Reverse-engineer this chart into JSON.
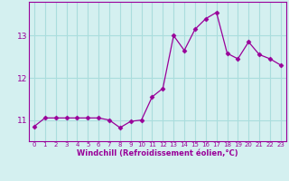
{
  "x": [
    0,
    1,
    2,
    3,
    4,
    5,
    6,
    7,
    8,
    9,
    10,
    11,
    12,
    13,
    14,
    15,
    16,
    17,
    18,
    19,
    20,
    21,
    22,
    23
  ],
  "y": [
    10.85,
    11.05,
    11.05,
    11.05,
    11.05,
    11.05,
    11.05,
    11.0,
    10.82,
    10.97,
    11.0,
    11.55,
    11.75,
    13.0,
    12.65,
    13.15,
    13.4,
    13.55,
    12.58,
    12.45,
    12.85,
    12.55,
    12.45,
    12.3
  ],
  "line_color": "#990099",
  "marker": "D",
  "marker_size": 2.5,
  "bg_color": "#d4f0f0",
  "grid_color": "#aadddd",
  "xlabel": "Windchill (Refroidissement éolien,°C)",
  "xlabel_color": "#990099",
  "tick_color": "#990099",
  "yticks": [
    11,
    12,
    13
  ],
  "ylim": [
    10.5,
    13.8
  ],
  "xlim": [
    -0.5,
    23.5
  ],
  "xtick_fontsize": 5.0,
  "ytick_fontsize": 6.5,
  "xlabel_fontsize": 6.0
}
